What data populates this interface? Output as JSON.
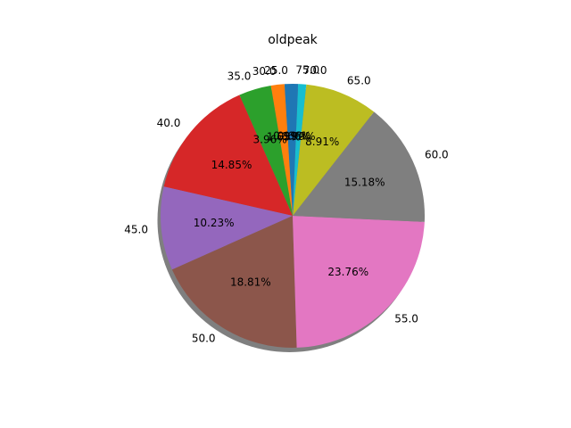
{
  "chart_data": {
    "type": "pie",
    "title": "oldpeak",
    "labels": [
      "25.0",
      "30.0",
      "35.0",
      "40.0",
      "45.0",
      "50.0",
      "55.0",
      "60.0",
      "65.0",
      "70.0",
      "75.0"
    ],
    "values": [
      0.99,
      1.65,
      3.96,
      14.85,
      10.23,
      18.81,
      23.76,
      15.18,
      8.91,
      0.99,
      0.66
    ],
    "value_labels": [
      "0.99%",
      "1.65%",
      "3.96%",
      "14.85%",
      "10.23%",
      "18.81%",
      "23.76%",
      "15.18%",
      "8.91%",
      "0.99%",
      "0.66%"
    ],
    "colors": [
      "#1f77b4",
      "#ff7f0e",
      "#2ca02c",
      "#d62728",
      "#9467bd",
      "#8c564b",
      "#e377c2",
      "#7f7f7f",
      "#bcbd22",
      "#17becf",
      "#1f77b4"
    ],
    "start_angle_deg": 90,
    "direction": "counterclockwise",
    "shadow": true,
    "legend": "none"
  }
}
